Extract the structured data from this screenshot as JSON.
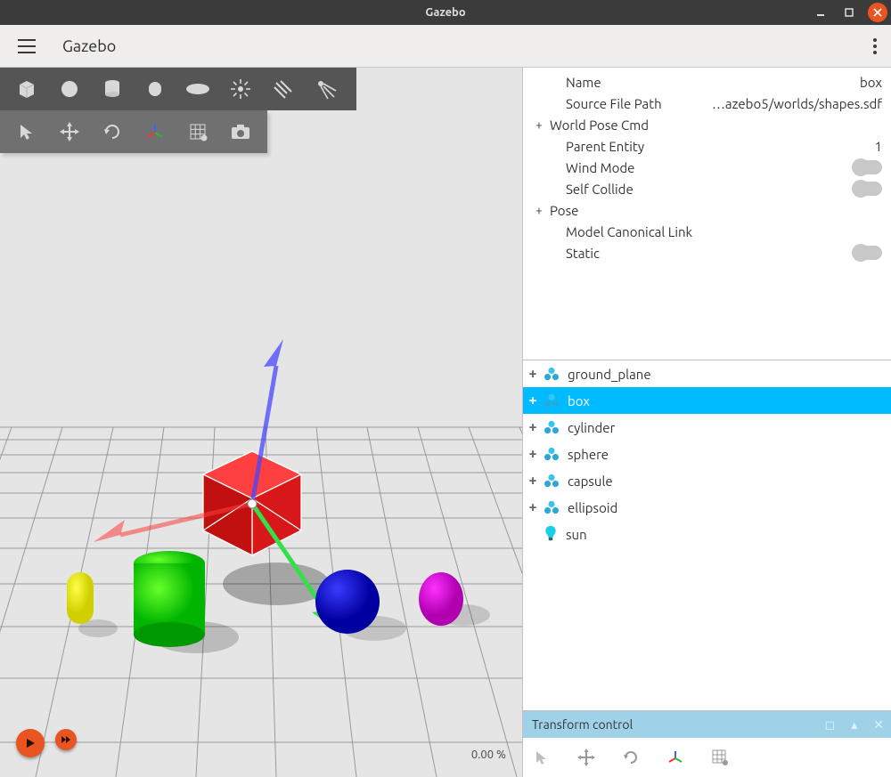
{
  "titlebar": {
    "title": "Gazebo"
  },
  "toolbar": {
    "appname": "Gazebo"
  },
  "rtf_label": "0.00 %",
  "properties": {
    "name_label": "Name",
    "name_value": "box",
    "sourcepath_label": "Source File Path",
    "sourcepath_value": "…azebo5/worlds/shapes.sdf",
    "worldpose_label": "World Pose Cmd",
    "parent_label": "Parent Entity",
    "parent_value": "1",
    "wind_label": "Wind Mode",
    "selfcollide_label": "Self Collide",
    "pose_label": "Pose",
    "canon_label": "Model Canonical Link",
    "static_label": "Static"
  },
  "tree": [
    {
      "label": "ground_plane",
      "type": "model",
      "expandable": true,
      "selected": false
    },
    {
      "label": "box",
      "type": "model",
      "expandable": true,
      "selected": true
    },
    {
      "label": "cylinder",
      "type": "model",
      "expandable": true,
      "selected": false
    },
    {
      "label": "sphere",
      "type": "model",
      "expandable": true,
      "selected": false
    },
    {
      "label": "capsule",
      "type": "model",
      "expandable": true,
      "selected": false
    },
    {
      "label": "ellipsoid",
      "type": "model",
      "expandable": true,
      "selected": false
    },
    {
      "label": "sun",
      "type": "light",
      "expandable": false,
      "selected": false
    }
  ],
  "xform": {
    "title": "Transform control"
  },
  "scene": {
    "background": "#e5e5e5",
    "grid_color": "#9a9a9a",
    "shapes": {
      "box": {
        "color": "#d81818",
        "highlight": "#ffffff"
      },
      "cylinder": {
        "radial": [
          "#67ff2a",
          "#00b500"
        ]
      },
      "sphere": {
        "radial": [
          "#3a3aff",
          "#0000a0"
        ]
      },
      "capsule": {
        "radial": [
          "#ffff4a",
          "#d0d000"
        ]
      },
      "ellipsoid": {
        "radial": [
          "#ff30ff",
          "#b000b0"
        ]
      },
      "shadow": "rgba(0,0,0,0.28)"
    },
    "gizmo": {
      "x_axis": "rgba(255,60,60,0.55)",
      "y_axis": "#33e04a",
      "z_axis": "rgba(70,70,255,0.75)"
    }
  },
  "colors": {
    "accent": "#e95420",
    "select": "#00bbff",
    "panel_header": "#9fd2e9"
  }
}
